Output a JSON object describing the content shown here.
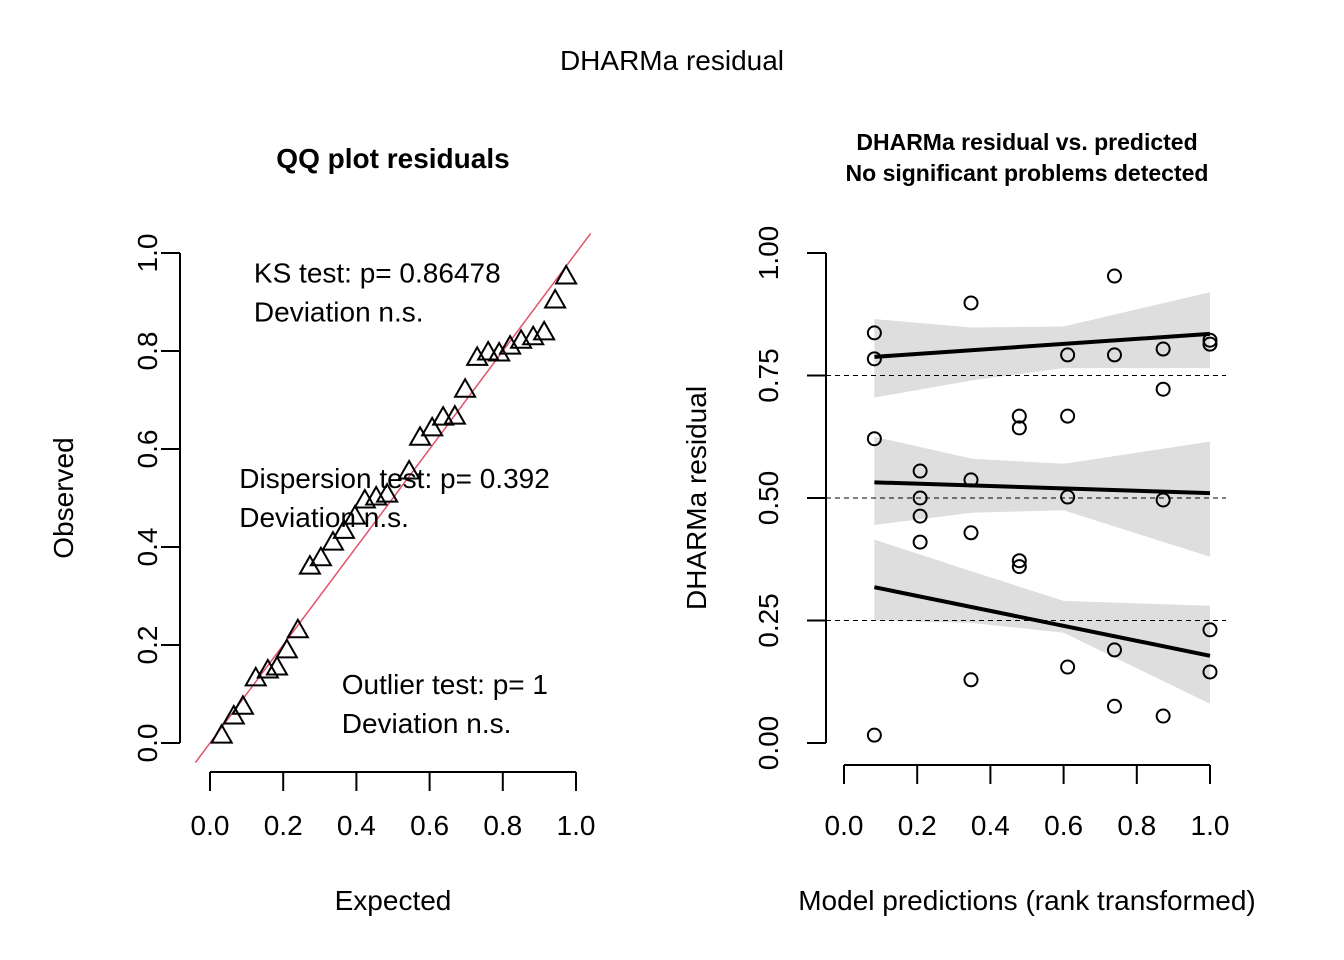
{
  "figure": {
    "title": "DHARMa residual"
  },
  "chart_data": [
    {
      "type": "scatter",
      "title": "QQ plot residuals",
      "xlabel": "Expected",
      "ylabel": "Observed",
      "xlim": [
        0,
        1
      ],
      "ylim": [
        0,
        1
      ],
      "xticks": [
        "0.0",
        "0.2",
        "0.4",
        "0.6",
        "0.8",
        "1.0"
      ],
      "yticks": [
        "0.0",
        "0.2",
        "0.4",
        "0.6",
        "0.8",
        "1.0"
      ],
      "marker": "triangle",
      "reference_line": {
        "slope": 1,
        "intercept": 0,
        "color": "#DF536B"
      },
      "points": [
        {
          "x": 0.032,
          "y": 0.016
        },
        {
          "x": 0.065,
          "y": 0.055
        },
        {
          "x": 0.09,
          "y": 0.075
        },
        {
          "x": 0.125,
          "y": 0.133
        },
        {
          "x": 0.158,
          "y": 0.149
        },
        {
          "x": 0.183,
          "y": 0.155
        },
        {
          "x": 0.21,
          "y": 0.19
        },
        {
          "x": 0.24,
          "y": 0.231
        },
        {
          "x": 0.273,
          "y": 0.361
        },
        {
          "x": 0.303,
          "y": 0.378
        },
        {
          "x": 0.336,
          "y": 0.41
        },
        {
          "x": 0.366,
          "y": 0.434
        },
        {
          "x": 0.396,
          "y": 0.463
        },
        {
          "x": 0.423,
          "y": 0.496
        },
        {
          "x": 0.454,
          "y": 0.502
        },
        {
          "x": 0.484,
          "y": 0.508
        },
        {
          "x": 0.544,
          "y": 0.555
        },
        {
          "x": 0.574,
          "y": 0.624
        },
        {
          "x": 0.607,
          "y": 0.643
        },
        {
          "x": 0.637,
          "y": 0.665
        },
        {
          "x": 0.669,
          "y": 0.667
        },
        {
          "x": 0.697,
          "y": 0.722
        },
        {
          "x": 0.73,
          "y": 0.787
        },
        {
          "x": 0.76,
          "y": 0.798
        },
        {
          "x": 0.79,
          "y": 0.796
        },
        {
          "x": 0.82,
          "y": 0.81
        },
        {
          "x": 0.85,
          "y": 0.822
        },
        {
          "x": 0.883,
          "y": 0.829
        },
        {
          "x": 0.913,
          "y": 0.839
        },
        {
          "x": 0.943,
          "y": 0.904
        },
        {
          "x": 0.973,
          "y": 0.953
        }
      ],
      "annotations": [
        {
          "lines": [
            "KS test: p= 0.86478",
            "Deviation  n.s."
          ],
          "x": 0.12,
          "y": 0.94
        },
        {
          "lines": [
            "Dispersion test: p= 0.392",
            "Deviation  n.s."
          ],
          "x": 0.08,
          "y": 0.52
        },
        {
          "lines": [
            "Outlier test: p= 1",
            "Deviation  n.s."
          ],
          "x": 0.36,
          "y": 0.1
        }
      ]
    },
    {
      "type": "scatter",
      "title": "DHARMa residual vs. predicted",
      "subtitle": "No significant problems detected",
      "xlabel": "Model predictions (rank transformed)",
      "ylabel": "DHARMa residual",
      "xlim": [
        0,
        1
      ],
      "ylim": [
        0,
        1
      ],
      "xticks": [
        "0.0",
        "0.2",
        "0.4",
        "0.6",
        "0.8",
        "1.0"
      ],
      "yticks": [
        "0.00",
        "0.25",
        "0.50",
        "0.75",
        "1.00"
      ],
      "marker": "circle",
      "reference_lines_y": [
        0.25,
        0.5,
        0.75
      ],
      "points": [
        {
          "x": 0.083,
          "y": 0.837
        },
        {
          "x": 0.083,
          "y": 0.784
        },
        {
          "x": 0.083,
          "y": 0.621
        },
        {
          "x": 0.083,
          "y": 0.016
        },
        {
          "x": 0.208,
          "y": 0.555
        },
        {
          "x": 0.208,
          "y": 0.5
        },
        {
          "x": 0.208,
          "y": 0.463
        },
        {
          "x": 0.208,
          "y": 0.41
        },
        {
          "x": 0.347,
          "y": 0.898
        },
        {
          "x": 0.347,
          "y": 0.537
        },
        {
          "x": 0.347,
          "y": 0.429
        },
        {
          "x": 0.347,
          "y": 0.129
        },
        {
          "x": 0.479,
          "y": 0.667
        },
        {
          "x": 0.479,
          "y": 0.643
        },
        {
          "x": 0.479,
          "y": 0.372
        },
        {
          "x": 0.479,
          "y": 0.36
        },
        {
          "x": 0.611,
          "y": 0.792
        },
        {
          "x": 0.611,
          "y": 0.667
        },
        {
          "x": 0.611,
          "y": 0.502
        },
        {
          "x": 0.611,
          "y": 0.155
        },
        {
          "x": 0.739,
          "y": 0.953
        },
        {
          "x": 0.739,
          "y": 0.792
        },
        {
          "x": 0.739,
          "y": 0.19
        },
        {
          "x": 0.739,
          "y": 0.075
        },
        {
          "x": 0.872,
          "y": 0.804
        },
        {
          "x": 0.872,
          "y": 0.722
        },
        {
          "x": 0.872,
          "y": 0.496
        },
        {
          "x": 0.872,
          "y": 0.055
        },
        {
          "x": 1.0,
          "y": 0.822
        },
        {
          "x": 1.0,
          "y": 0.814
        },
        {
          "x": 1.0,
          "y": 0.231
        },
        {
          "x": 1.0,
          "y": 0.145
        }
      ],
      "quantile_fits": [
        {
          "quantile": 0.75,
          "line": [
            [
              0.083,
              0.788
            ],
            [
              1.0,
              0.835
            ]
          ],
          "band": {
            "x": [
              0.083,
              0.35,
              0.6,
              1.0
            ],
            "lower": [
              0.705,
              0.74,
              0.765,
              0.765
            ],
            "upper": [
              0.865,
              0.848,
              0.85,
              0.92
            ]
          }
        },
        {
          "quantile": 0.5,
          "line": [
            [
              0.083,
              0.532
            ],
            [
              1.0,
              0.51
            ]
          ],
          "band": {
            "x": [
              0.083,
              0.35,
              0.6,
              1.0
            ],
            "lower": [
              0.445,
              0.47,
              0.475,
              0.38
            ],
            "upper": [
              0.625,
              0.58,
              0.57,
              0.615
            ]
          }
        },
        {
          "quantile": 0.25,
          "line": [
            [
              0.083,
              0.318
            ],
            [
              1.0,
              0.178
            ]
          ],
          "band": {
            "x": [
              0.083,
              0.35,
              0.6,
              1.0
            ],
            "lower": [
              0.25,
              0.245,
              0.225,
              0.08
            ],
            "upper": [
              0.415,
              0.35,
              0.29,
              0.28
            ]
          }
        }
      ],
      "band_color": "#DEDEDE"
    }
  ]
}
